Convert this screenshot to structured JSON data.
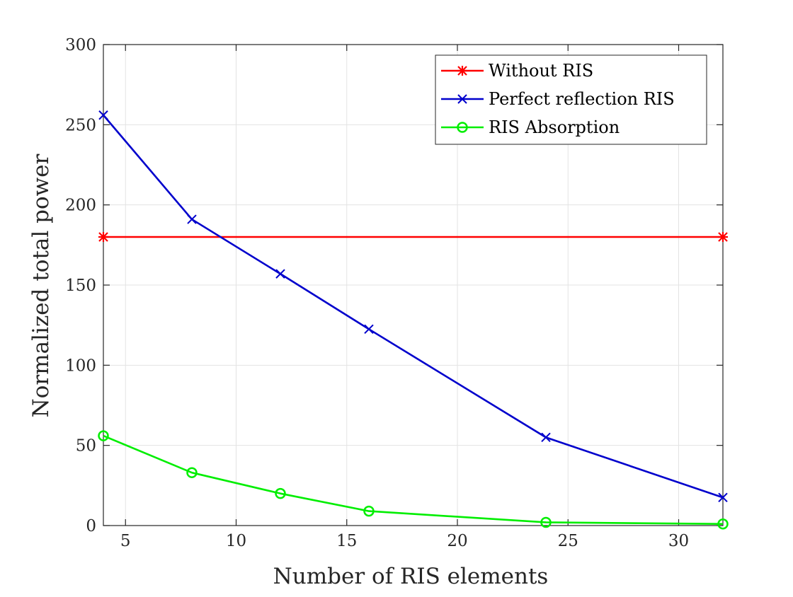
{
  "chart_data": {
    "type": "line",
    "title": "",
    "xlabel": "Number of RIS elements",
    "ylabel": "Normalized total power",
    "xlim": [
      4,
      32
    ],
    "ylim": [
      0,
      300
    ],
    "x_ticks": [
      5,
      10,
      15,
      20,
      25,
      30
    ],
    "y_ticks": [
      0,
      50,
      100,
      150,
      200,
      250,
      300
    ],
    "grid": true,
    "legend_position": "top-right",
    "series": [
      {
        "name": "Without RIS",
        "color": "#ff0000",
        "marker": "asterisk",
        "x": [
          4,
          32
        ],
        "y": [
          180,
          180
        ]
      },
      {
        "name": "Perfect reflection RIS",
        "color": "#0000cc",
        "marker": "x",
        "x": [
          4,
          8,
          12,
          16,
          24,
          32
        ],
        "y": [
          256,
          191,
          157,
          122.5,
          55,
          17.5
        ]
      },
      {
        "name": "RIS Absorption",
        "color": "#00ee00",
        "marker": "circle",
        "x": [
          4,
          8,
          12,
          16,
          24,
          32
        ],
        "y": [
          56,
          33,
          20,
          9,
          2,
          1
        ]
      }
    ]
  }
}
